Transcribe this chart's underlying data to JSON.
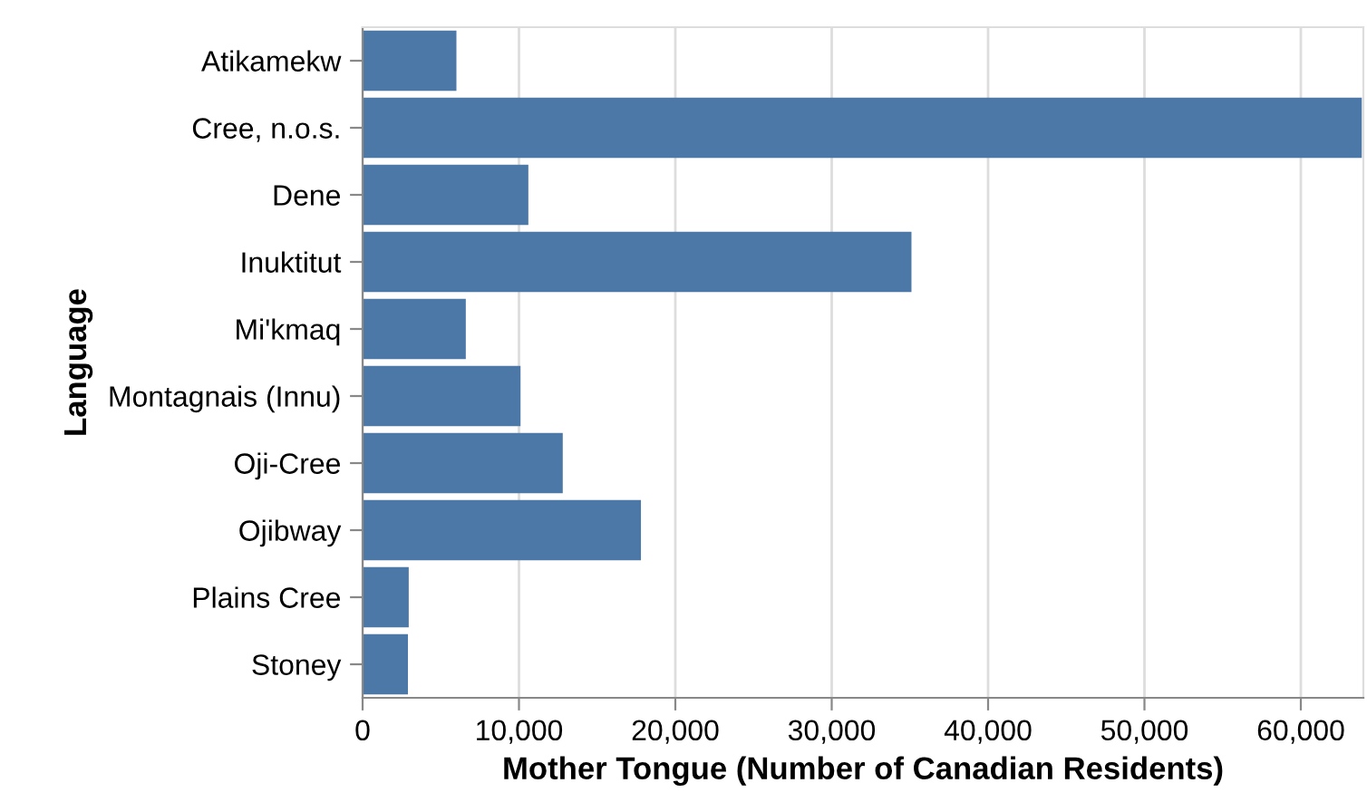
{
  "chart_data": {
    "type": "bar",
    "orientation": "horizontal",
    "xlabel": "Mother Tongue (Number of Canadian Residents)",
    "ylabel": "Language",
    "categories": [
      "Atikamekw",
      "Cree, n.o.s.",
      "Dene",
      "Inuktitut",
      "Mi'kmaq",
      "Montagnais (Innu)",
      "Oji-Cree",
      "Ojibway",
      "Plains Cree",
      "Stoney"
    ],
    "values": [
      6000,
      63900,
      10600,
      35100,
      6600,
      10100,
      12800,
      17800,
      2950,
      2900
    ],
    "color": "#4c78a8",
    "xlim": [
      0,
      64000
    ],
    "xticks": [
      {
        "value": 0,
        "label": "0"
      },
      {
        "value": 10000,
        "label": "10,000"
      },
      {
        "value": 20000,
        "label": "20,000"
      },
      {
        "value": 30000,
        "label": "30,000"
      },
      {
        "value": 40000,
        "label": "40,000"
      },
      {
        "value": 50000,
        "label": "50,000"
      },
      {
        "value": 60000,
        "label": "60,000"
      }
    ],
    "grid": "x"
  }
}
